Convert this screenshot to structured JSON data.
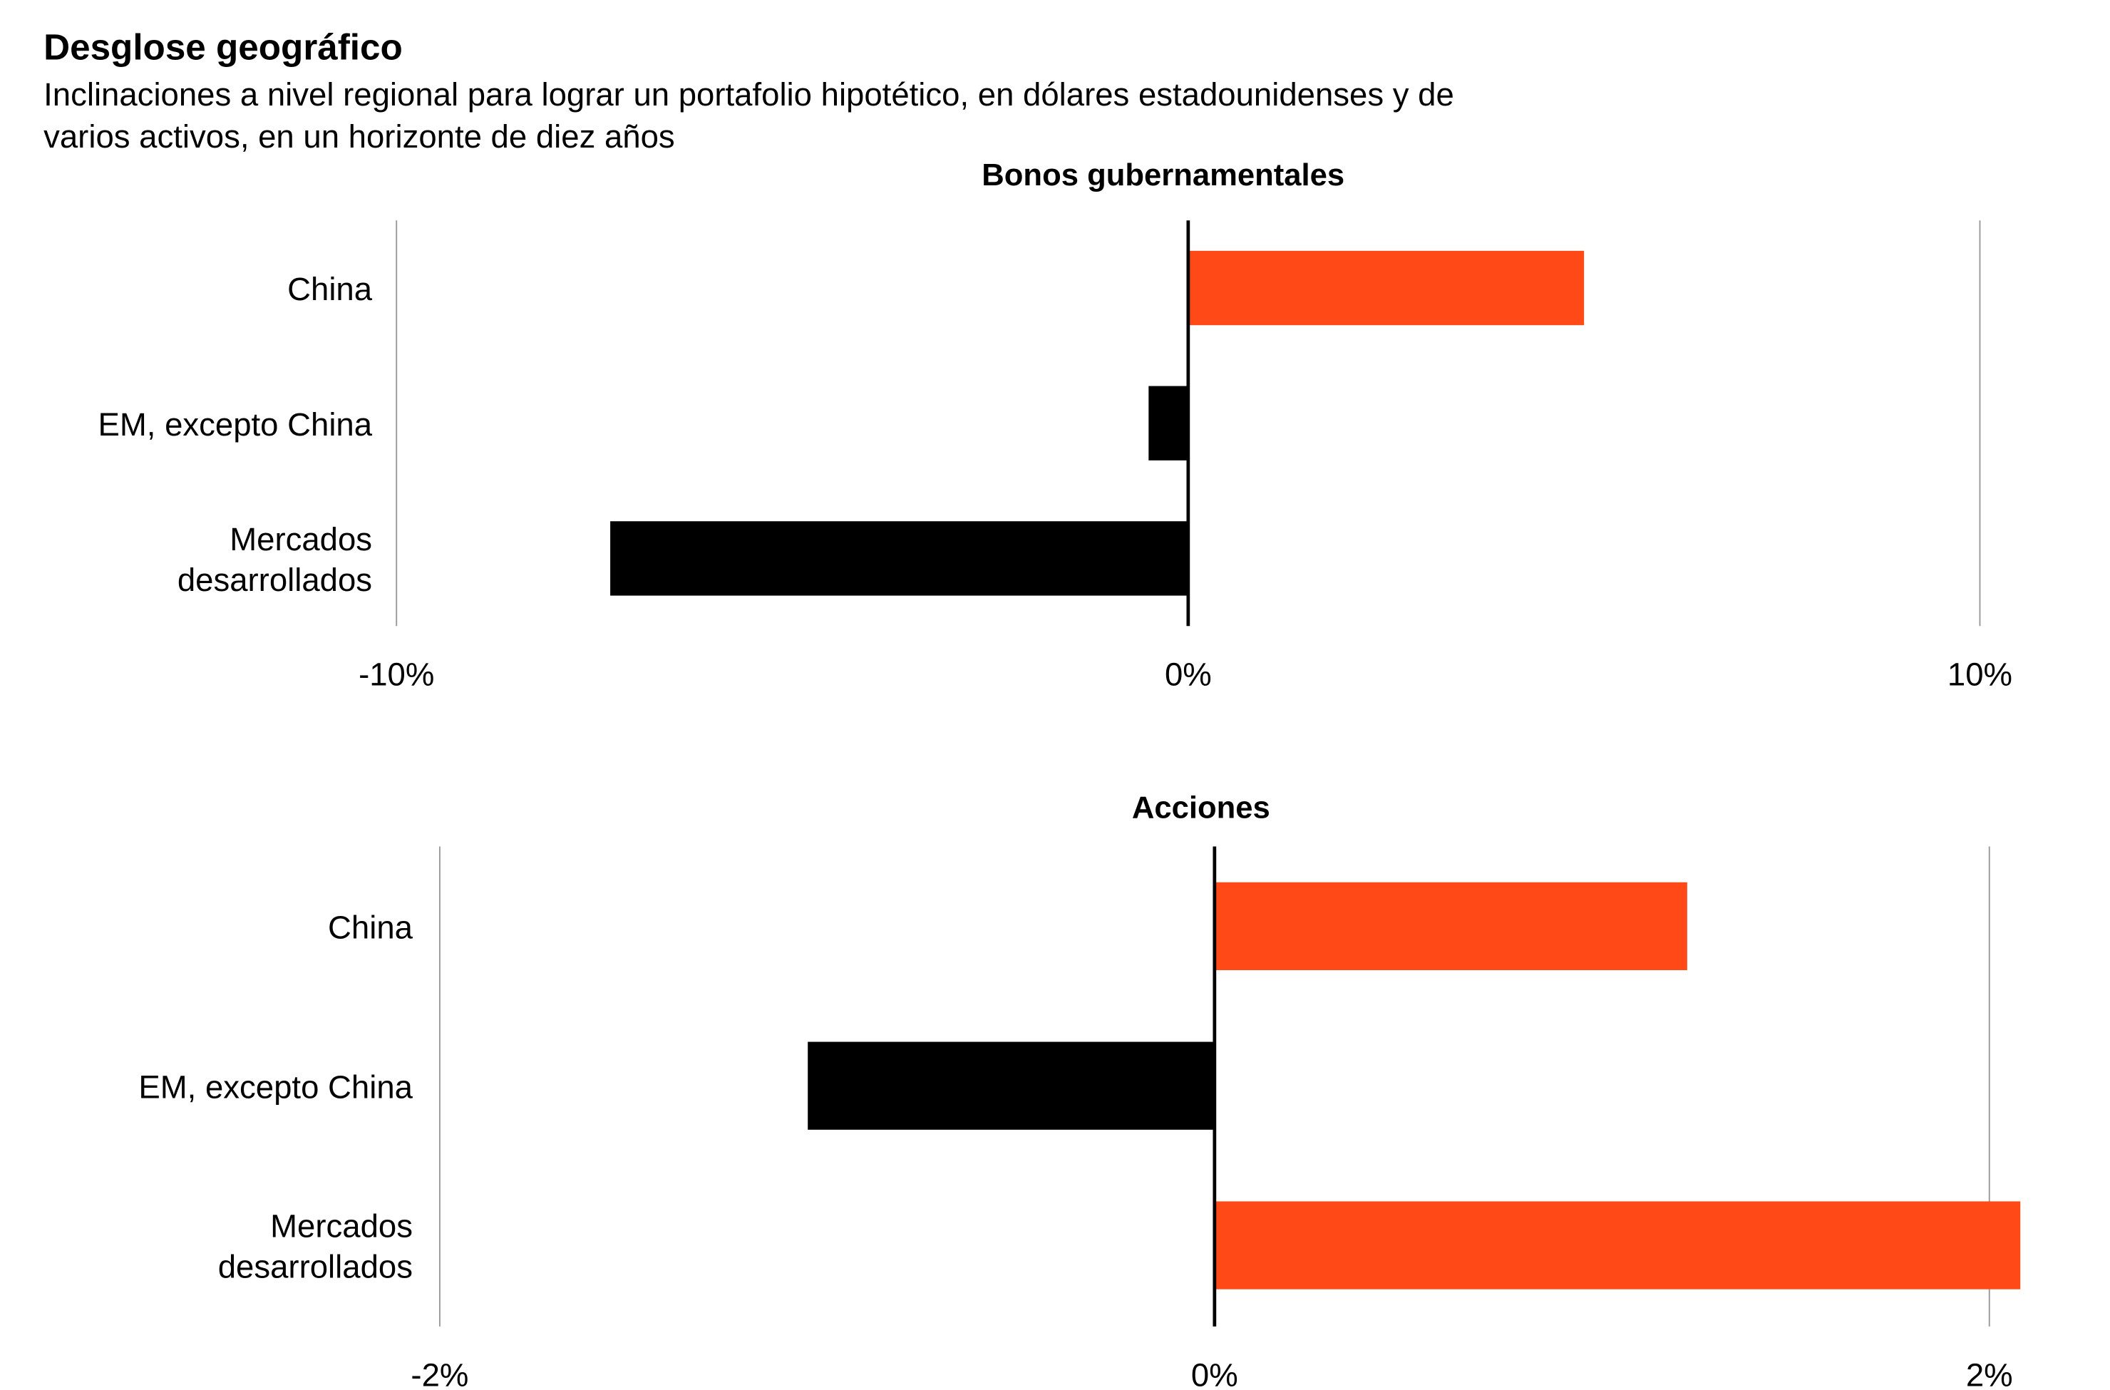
{
  "header": {
    "title": "Desglose geográfico",
    "subtitle_line1": "Inclinaciones a nivel regional para lograr un portafolio hipotético, en dólares estadounidenses y de",
    "subtitle_line2": "varios activos, en un horizonte de diez años"
  },
  "colors": {
    "positive": "#FF4A17",
    "negative": "#000000",
    "grid": "#999999"
  },
  "chart_data": [
    {
      "type": "bar",
      "orientation": "horizontal",
      "title": "Bonos gubernamentales",
      "categories": [
        [
          "China"
        ],
        [
          "EM, excepto China"
        ],
        [
          "Mercados",
          "desarrollados"
        ]
      ],
      "values": [
        5.0,
        -0.5,
        -7.3
      ],
      "unit": "%",
      "xlim": [
        -10,
        10
      ],
      "ticks": [
        -10,
        0,
        10
      ],
      "tick_labels": [
        "-10%",
        "0%",
        "10%"
      ],
      "grid": true
    },
    {
      "type": "bar",
      "orientation": "horizontal",
      "title": "Acciones",
      "categories": [
        [
          "China"
        ],
        [
          "EM, excepto China"
        ],
        [
          "Mercados",
          "desarrollados"
        ]
      ],
      "values": [
        1.22,
        -1.05,
        2.08
      ],
      "unit": "%",
      "xlim": [
        -2,
        2
      ],
      "ticks": [
        -2,
        0,
        2
      ],
      "tick_labels": [
        "-2%",
        "0%",
        "2%"
      ],
      "grid": true
    }
  ]
}
